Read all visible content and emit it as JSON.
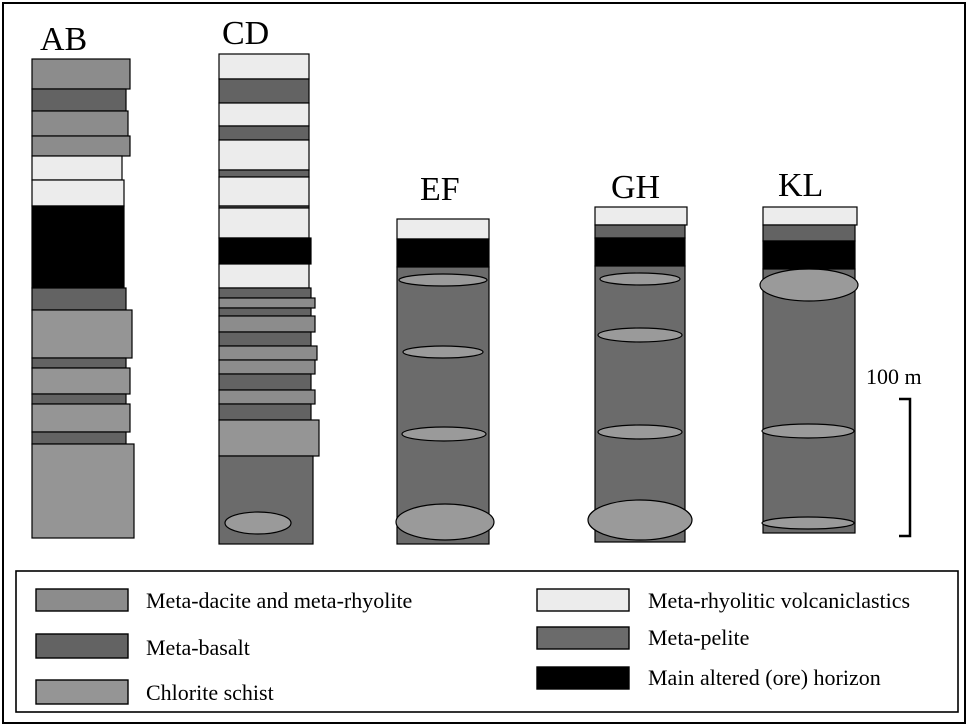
{
  "columns": [
    {
      "id": "ab",
      "label": "AB"
    },
    {
      "id": "cd",
      "label": "CD"
    },
    {
      "id": "ef",
      "label": "EF"
    },
    {
      "id": "gh",
      "label": "GH"
    },
    {
      "id": "kl",
      "label": "KL"
    }
  ],
  "scale": {
    "label": "100 m"
  },
  "legend": {
    "items": [
      {
        "key": "dacite",
        "label": "Meta-dacite and meta-rhyolite",
        "color": "#8c8c8c"
      },
      {
        "key": "basalt",
        "label": "Meta-basalt",
        "color": "#636363"
      },
      {
        "key": "chlorite",
        "label": "Chlorite schist",
        "color": "#959595"
      },
      {
        "key": "volcaniclastic",
        "label": "Meta-rhyolitic volcaniclastics",
        "color": "#ececec"
      },
      {
        "key": "pelite",
        "label": "Meta-pelite",
        "color": "#6b6b6b"
      },
      {
        "key": "ore",
        "label": "Main altered (ore) horizon",
        "color": "#000000"
      }
    ]
  },
  "colors": {
    "dacite": "#8c8c8c",
    "basalt": "#636363",
    "chlorite": "#959595",
    "volcaniclastic": "#ececec",
    "pelite": "#6b6b6b",
    "ore": "#000000",
    "lens": "#9a9a9a"
  }
}
